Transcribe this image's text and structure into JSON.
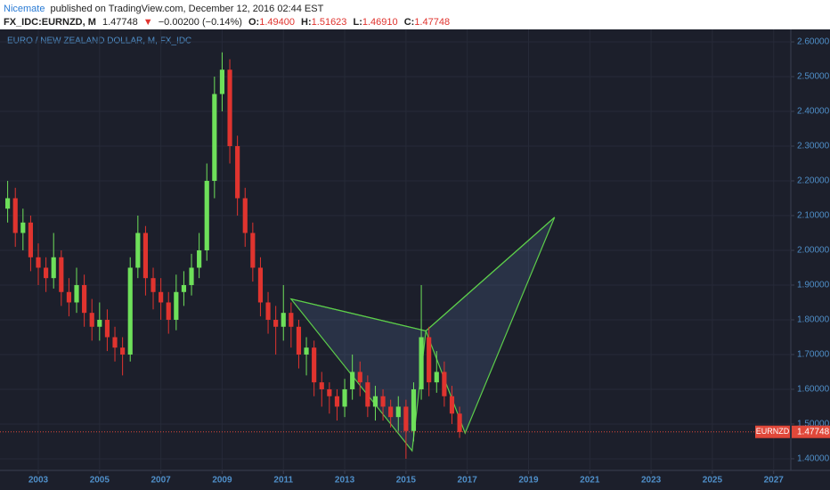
{
  "header": {
    "author": "Nicemate",
    "published": "published on TradingView.com, December 12, 2016 02:44 EST",
    "symbol": "FX_IDC:EURNZD, M",
    "last": "1.47748",
    "arrow": "▼",
    "change": "−0.00200 (−0.14%)",
    "open_label": "O:",
    "open": "1.49400",
    "high_label": "H:",
    "high": "1.51623",
    "low_label": "L:",
    "low": "1.46910",
    "close_label": "C:",
    "close": "1.47748"
  },
  "chart_data": {
    "type": "candlestick",
    "title": "EURO / NEW ZEALAND DOLLAR, M, FX_IDC",
    "x": [
      2002,
      2002.25,
      2002.5,
      2002.75,
      2003,
      2003.25,
      2003.5,
      2003.75,
      2004,
      2004.25,
      2004.5,
      2004.75,
      2005,
      2005.25,
      2005.5,
      2005.75,
      2006,
      2006.25,
      2006.5,
      2006.75,
      2007,
      2007.25,
      2007.5,
      2007.75,
      2008,
      2008.25,
      2008.5,
      2008.75,
      2009,
      2009.25,
      2009.5,
      2009.75,
      2010,
      2010.25,
      2010.5,
      2010.75,
      2011,
      2011.25,
      2011.5,
      2011.75,
      2012,
      2012.25,
      2012.5,
      2012.75,
      2013,
      2013.25,
      2013.5,
      2013.75,
      2014,
      2014.25,
      2014.5,
      2014.75,
      2015,
      2015.25,
      2015.5,
      2015.75,
      2016,
      2016.25,
      2016.5,
      2016.75
    ],
    "open": [
      2.12,
      2.15,
      2.05,
      2.08,
      1.98,
      1.95,
      1.92,
      1.98,
      1.88,
      1.85,
      1.9,
      1.82,
      1.78,
      1.8,
      1.75,
      1.72,
      1.7,
      1.95,
      2.05,
      1.92,
      1.88,
      1.85,
      1.8,
      1.88,
      1.9,
      1.95,
      2.0,
      2.2,
      2.45,
      2.52,
      2.3,
      2.15,
      2.05,
      1.95,
      1.85,
      1.8,
      1.78,
      1.82,
      1.78,
      1.7,
      1.72,
      1.62,
      1.6,
      1.58,
      1.55,
      1.6,
      1.65,
      1.62,
      1.55,
      1.58,
      1.55,
      1.52,
      1.55,
      1.48,
      1.6,
      1.75,
      1.62,
      1.65,
      1.58,
      1.53
    ],
    "high": [
      2.2,
      2.18,
      2.12,
      2.1,
      2.02,
      1.98,
      2.05,
      2.0,
      1.92,
      1.95,
      1.93,
      1.86,
      1.85,
      1.83,
      1.78,
      1.75,
      1.98,
      2.1,
      2.07,
      1.95,
      1.92,
      1.88,
      1.93,
      1.94,
      1.99,
      2.05,
      2.25,
      2.5,
      2.57,
      2.55,
      2.33,
      2.18,
      2.08,
      1.98,
      1.88,
      1.84,
      1.9,
      1.85,
      1.8,
      1.75,
      1.74,
      1.65,
      1.62,
      1.6,
      1.63,
      1.7,
      1.68,
      1.64,
      1.61,
      1.6,
      1.57,
      1.58,
      1.57,
      1.62,
      1.9,
      1.78,
      1.71,
      1.68,
      1.61,
      1.55
    ],
    "low": [
      2.08,
      2.01,
      2.0,
      1.94,
      1.9,
      1.88,
      1.89,
      1.84,
      1.81,
      1.82,
      1.78,
      1.74,
      1.74,
      1.71,
      1.68,
      1.64,
      1.68,
      1.92,
      1.87,
      1.83,
      1.8,
      1.76,
      1.77,
      1.84,
      1.87,
      1.92,
      1.97,
      2.15,
      2.4,
      2.25,
      2.1,
      2.01,
      1.91,
      1.81,
      1.76,
      1.7,
      1.74,
      1.72,
      1.66,
      1.64,
      1.58,
      1.55,
      1.53,
      1.51,
      1.52,
      1.57,
      1.58,
      1.52,
      1.51,
      1.51,
      1.49,
      1.48,
      1.4,
      1.45,
      1.57,
      1.58,
      1.59,
      1.55,
      1.5,
      1.46
    ],
    "close": [
      2.15,
      2.05,
      2.08,
      1.98,
      1.95,
      1.92,
      1.98,
      1.88,
      1.85,
      1.9,
      1.82,
      1.78,
      1.8,
      1.75,
      1.72,
      1.7,
      1.95,
      2.05,
      1.92,
      1.88,
      1.85,
      1.8,
      1.88,
      1.9,
      1.95,
      2.0,
      2.2,
      2.45,
      2.52,
      2.3,
      2.15,
      2.05,
      1.95,
      1.85,
      1.8,
      1.78,
      1.82,
      1.78,
      1.7,
      1.72,
      1.62,
      1.6,
      1.58,
      1.55,
      1.6,
      1.65,
      1.62,
      1.55,
      1.58,
      1.55,
      1.52,
      1.55,
      1.48,
      1.6,
      1.75,
      1.62,
      1.65,
      1.58,
      1.53,
      1.477
    ],
    "up_color": "#6ee05a",
    "down_color": "#e0342f",
    "pattern": {
      "x": [
        2011.25,
        2015.2,
        2015.65,
        2016.93,
        2019.85
      ],
      "y": [
        1.86,
        1.423,
        1.768,
        1.474,
        2.095
      ],
      "color": "#5ccc4a"
    },
    "symbol": "EURNZD",
    "last_price": 1.47748,
    "last_color": "#e0483a",
    "xlim": [
      2001.75,
      2027.56
    ],
    "ylim": [
      1.3665,
      2.636
    ],
    "xticks": [
      2003,
      2005,
      2007,
      2009,
      2011,
      2013,
      2015,
      2017,
      2019,
      2021,
      2023,
      2025,
      2027
    ],
    "yticks": [
      {
        "value": 1.4,
        "label": "1.40000"
      },
      {
        "value": 1.5,
        "label": "1.50000"
      },
      {
        "value": 1.6,
        "label": "1.60000"
      },
      {
        "value": 1.7,
        "label": "1.70000"
      },
      {
        "value": 1.8,
        "label": "1.80000"
      },
      {
        "value": 1.9,
        "label": "1.90000"
      },
      {
        "value": 2.0,
        "label": "2.00000"
      },
      {
        "value": 2.1,
        "label": "2.10000"
      },
      {
        "value": 2.2,
        "label": "2.20000"
      },
      {
        "value": 2.3,
        "label": "2.30000"
      },
      {
        "value": 2.4,
        "label": "2.40000"
      },
      {
        "value": 2.5,
        "label": "2.50000"
      },
      {
        "value": 2.6,
        "label": "2.60000"
      }
    ],
    "grid": true
  }
}
